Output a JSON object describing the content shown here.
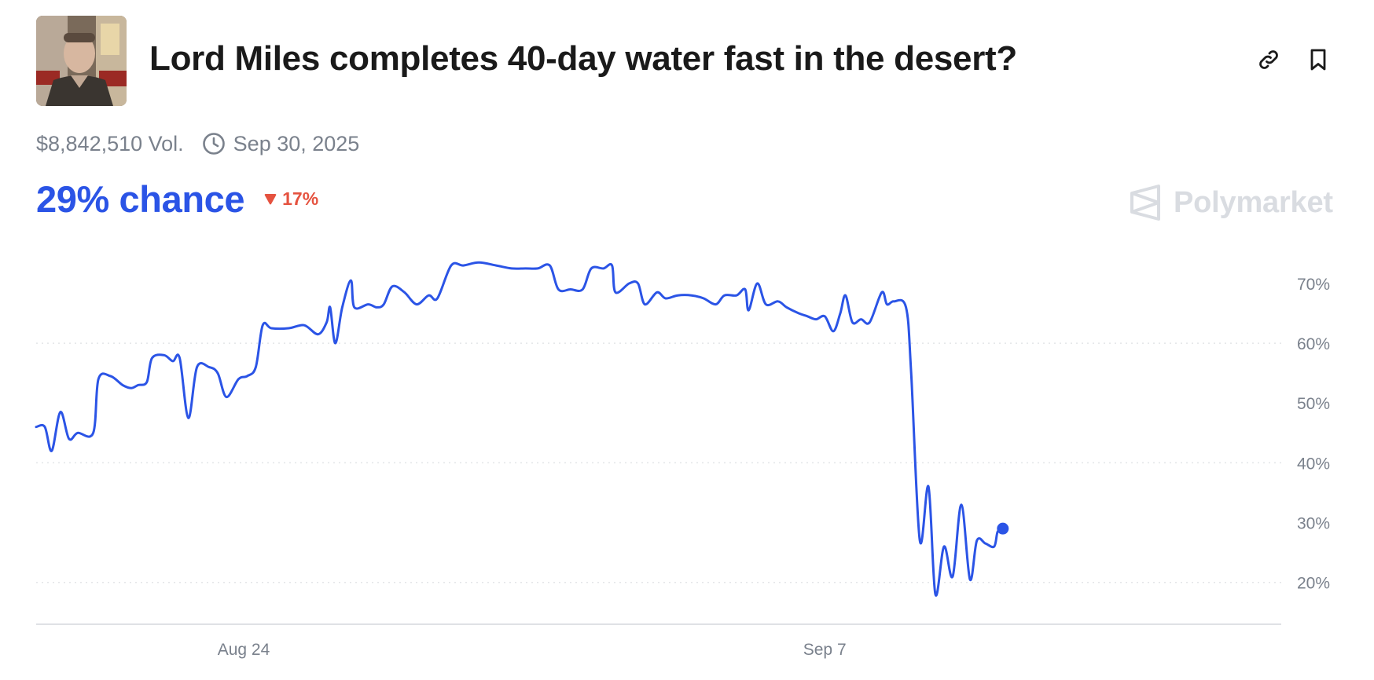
{
  "header": {
    "title": "Lord Miles completes 40-day water fast in the desert?",
    "avatar_icon": "person-photo-icon",
    "link_icon": "link-icon",
    "bookmark_icon": "bookmark-icon"
  },
  "meta": {
    "volume": "$8,842,510 Vol.",
    "end_date": "Sep 30, 2025",
    "clock_icon": "clock-icon"
  },
  "odds": {
    "chance": "29% chance",
    "change": "17%",
    "change_direction": "down"
  },
  "brand": {
    "name": "Polymarket"
  },
  "colors": {
    "accent": "#2b54e6",
    "negative": "#e5523f",
    "muted_text": "#7a818c",
    "grid": "#e3e5e8",
    "brand_logo": "#d9dce1"
  },
  "chart_data": {
    "type": "line",
    "x_start": "2025-08-19",
    "x_end": "2025-09-18",
    "xticks": [
      {
        "date": "2025-08-24",
        "label": "Aug 24"
      },
      {
        "date": "2025-09-07",
        "label": "Sep 7"
      }
    ],
    "ylim": [
      13,
      78
    ],
    "yticks": [
      {
        "value": 20,
        "label": "20%"
      },
      {
        "value": 30,
        "label": "30%"
      },
      {
        "value": 40,
        "label": "40%"
      },
      {
        "value": 50,
        "label": "50%"
      },
      {
        "value": 60,
        "label": "60%"
      },
      {
        "value": 70,
        "label": "70%"
      }
    ],
    "grid_values": [
      20,
      40,
      60
    ],
    "grid": true,
    "legend": "none",
    "series": [
      {
        "points": [
          [
            "2025-08-19T00:00",
            46
          ],
          [
            "2025-08-19T05:00",
            46
          ],
          [
            "2025-08-19T09:00",
            42
          ],
          [
            "2025-08-19T14:00",
            48.5
          ],
          [
            "2025-08-19T19:00",
            44
          ],
          [
            "2025-08-20T00:00",
            45
          ],
          [
            "2025-08-20T09:00",
            45
          ],
          [
            "2025-08-20T12:00",
            54
          ],
          [
            "2025-08-20T19:00",
            54.5
          ],
          [
            "2025-08-21T02:00",
            53
          ],
          [
            "2025-08-21T07:00",
            52.5
          ],
          [
            "2025-08-21T11:00",
            53
          ],
          [
            "2025-08-21T16:00",
            53.5
          ],
          [
            "2025-08-21T19:00",
            57.5
          ],
          [
            "2025-08-22T02:00",
            58
          ],
          [
            "2025-08-22T07:00",
            57
          ],
          [
            "2025-08-22T11:00",
            57.5
          ],
          [
            "2025-08-22T16:00",
            47.5
          ],
          [
            "2025-08-22T21:00",
            56
          ],
          [
            "2025-08-23T04:00",
            56
          ],
          [
            "2025-08-23T09:00",
            55
          ],
          [
            "2025-08-23T14:00",
            51
          ],
          [
            "2025-08-23T21:00",
            54
          ],
          [
            "2025-08-24T02:00",
            54.5
          ],
          [
            "2025-08-24T07:00",
            56
          ],
          [
            "2025-08-24T11:00",
            63
          ],
          [
            "2025-08-24T16:00",
            62.5
          ],
          [
            "2025-08-25T02:00",
            62.5
          ],
          [
            "2025-08-25T11:00",
            63
          ],
          [
            "2025-08-25T19:00",
            61.5
          ],
          [
            "2025-08-26T00:00",
            63.5
          ],
          [
            "2025-08-26T02:00",
            66
          ],
          [
            "2025-08-26T05:00",
            60
          ],
          [
            "2025-08-26T09:00",
            66
          ],
          [
            "2025-08-26T14:00",
            70.5
          ],
          [
            "2025-08-26T16:00",
            66
          ],
          [
            "2025-08-27T00:00",
            66.5
          ],
          [
            "2025-08-27T05:00",
            66
          ],
          [
            "2025-08-27T09:00",
            66.5
          ],
          [
            "2025-08-27T14:00",
            69.5
          ],
          [
            "2025-08-27T21:00",
            68.5
          ],
          [
            "2025-08-28T04:00",
            66.5
          ],
          [
            "2025-08-28T11:00",
            68
          ],
          [
            "2025-08-28T16:00",
            67.5
          ],
          [
            "2025-08-29T00:00",
            73
          ],
          [
            "2025-08-29T07:00",
            73
          ],
          [
            "2025-08-29T16:00",
            73.5
          ],
          [
            "2025-08-30T02:00",
            73
          ],
          [
            "2025-08-30T11:00",
            72.5
          ],
          [
            "2025-08-30T19:00",
            72.5
          ],
          [
            "2025-08-31T02:00",
            72.5
          ],
          [
            "2025-08-31T09:00",
            73
          ],
          [
            "2025-08-31T14:00",
            69
          ],
          [
            "2025-08-31T21:00",
            69
          ],
          [
            "2025-09-01T04:00",
            69
          ],
          [
            "2025-09-01T09:00",
            72.5
          ],
          [
            "2025-09-01T16:00",
            72.5
          ],
          [
            "2025-09-01T21:00",
            73
          ],
          [
            "2025-09-01T23:00",
            68.5
          ],
          [
            "2025-09-02T07:00",
            70
          ],
          [
            "2025-09-02T12:00",
            70
          ],
          [
            "2025-09-02T16:00",
            66.5
          ],
          [
            "2025-09-02T23:00",
            68.5
          ],
          [
            "2025-09-03T04:00",
            67.5
          ],
          [
            "2025-09-03T11:00",
            68
          ],
          [
            "2025-09-03T19:00",
            68
          ],
          [
            "2025-09-04T02:00",
            67.5
          ],
          [
            "2025-09-04T09:00",
            66.5
          ],
          [
            "2025-09-04T14:00",
            68
          ],
          [
            "2025-09-04T21:00",
            68
          ],
          [
            "2025-09-05T02:00",
            69
          ],
          [
            "2025-09-05T04:00",
            65.5
          ],
          [
            "2025-09-05T09:00",
            70
          ],
          [
            "2025-09-05T14:00",
            66.5
          ],
          [
            "2025-09-05T21:00",
            67
          ],
          [
            "2025-09-06T02:00",
            66
          ],
          [
            "2025-09-06T09:00",
            65
          ],
          [
            "2025-09-06T14:00",
            64.5
          ],
          [
            "2025-09-06T19:00",
            64
          ],
          [
            "2025-09-07T00:00",
            64.5
          ],
          [
            "2025-09-07T05:00",
            62
          ],
          [
            "2025-09-07T09:00",
            65
          ],
          [
            "2025-09-07T12:00",
            68
          ],
          [
            "2025-09-07T16:00",
            63.5
          ],
          [
            "2025-09-07T21:00",
            64
          ],
          [
            "2025-09-08T02:00",
            63.5
          ],
          [
            "2025-09-08T09:00",
            68.5
          ],
          [
            "2025-09-08T12:00",
            66.5
          ],
          [
            "2025-09-08T16:00",
            67
          ],
          [
            "2025-09-08T23:00",
            66
          ],
          [
            "2025-09-09T02:00",
            55
          ],
          [
            "2025-09-09T07:00",
            27
          ],
          [
            "2025-09-09T12:00",
            36
          ],
          [
            "2025-09-09T16:00",
            18
          ],
          [
            "2025-09-09T21:00",
            26
          ],
          [
            "2025-09-10T02:00",
            21
          ],
          [
            "2025-09-10T07:00",
            33
          ],
          [
            "2025-09-10T12:00",
            20.5
          ],
          [
            "2025-09-10T16:00",
            27
          ],
          [
            "2025-09-10T21:00",
            26.5
          ],
          [
            "2025-09-11T02:00",
            26
          ],
          [
            "2025-09-11T04:00",
            28.5
          ],
          [
            "2025-09-11T07:00",
            29
          ]
        ]
      }
    ],
    "current": {
      "date": "2025-09-11T07:00",
      "value": 29
    }
  }
}
